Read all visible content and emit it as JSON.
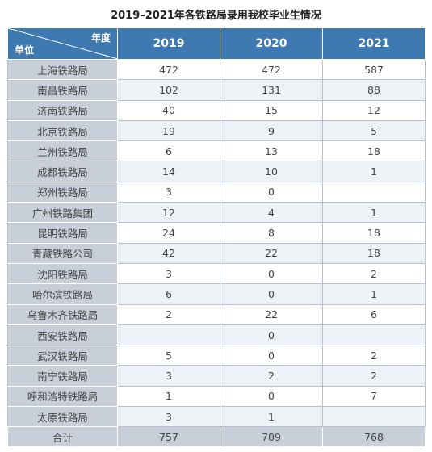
{
  "title": "2019–2021年各铁路局录用我校毕业生情况",
  "header": {
    "year_label": "年度",
    "unit_label": "单位",
    "years": [
      "2019",
      "2020",
      "2021"
    ]
  },
  "rows": [
    {
      "name": "上海铁路局",
      "v2019": "472",
      "v2020": "472",
      "v2021": "587"
    },
    {
      "name": "南昌铁路局",
      "v2019": "102",
      "v2020": "131",
      "v2021": "88"
    },
    {
      "name": "济南铁路局",
      "v2019": "40",
      "v2020": "15",
      "v2021": "12"
    },
    {
      "name": "北京铁路局",
      "v2019": "19",
      "v2020": "9",
      "v2021": "5"
    },
    {
      "name": "兰州铁路局",
      "v2019": "6",
      "v2020": "13",
      "v2021": "18"
    },
    {
      "name": "成都铁路局",
      "v2019": "14",
      "v2020": "10",
      "v2021": "1"
    },
    {
      "name": "郑州铁路局",
      "v2019": "3",
      "v2020": "0",
      "v2021": ""
    },
    {
      "name": "广州铁路集团",
      "v2019": "12",
      "v2020": "4",
      "v2021": "1"
    },
    {
      "name": "昆明铁路局",
      "v2019": "24",
      "v2020": "8",
      "v2021": "18"
    },
    {
      "name": "青藏铁路公司",
      "v2019": "42",
      "v2020": "22",
      "v2021": "18"
    },
    {
      "name": "沈阳铁路局",
      "v2019": "3",
      "v2020": "0",
      "v2021": "2"
    },
    {
      "name": "哈尔滨铁路局",
      "v2019": "6",
      "v2020": "0",
      "v2021": "1"
    },
    {
      "name": "乌鲁木齐铁路局",
      "v2019": "2",
      "v2020": "22",
      "v2021": "6"
    },
    {
      "name": "西安铁路局",
      "v2019": "",
      "v2020": "0",
      "v2021": ""
    },
    {
      "name": "武汉铁路局",
      "v2019": "5",
      "v2020": "0",
      "v2021": "2"
    },
    {
      "name": "南宁铁路局",
      "v2019": "3",
      "v2020": "2",
      "v2021": "2"
    },
    {
      "name": "呼和浩特铁路局",
      "v2019": "1",
      "v2020": "0",
      "v2021": "7"
    },
    {
      "name": "太原铁路局",
      "v2019": "3",
      "v2020": "1",
      "v2021": ""
    }
  ],
  "total": {
    "name": "合计",
    "v2019": "757",
    "v2020": "709",
    "v2021": "768"
  }
}
